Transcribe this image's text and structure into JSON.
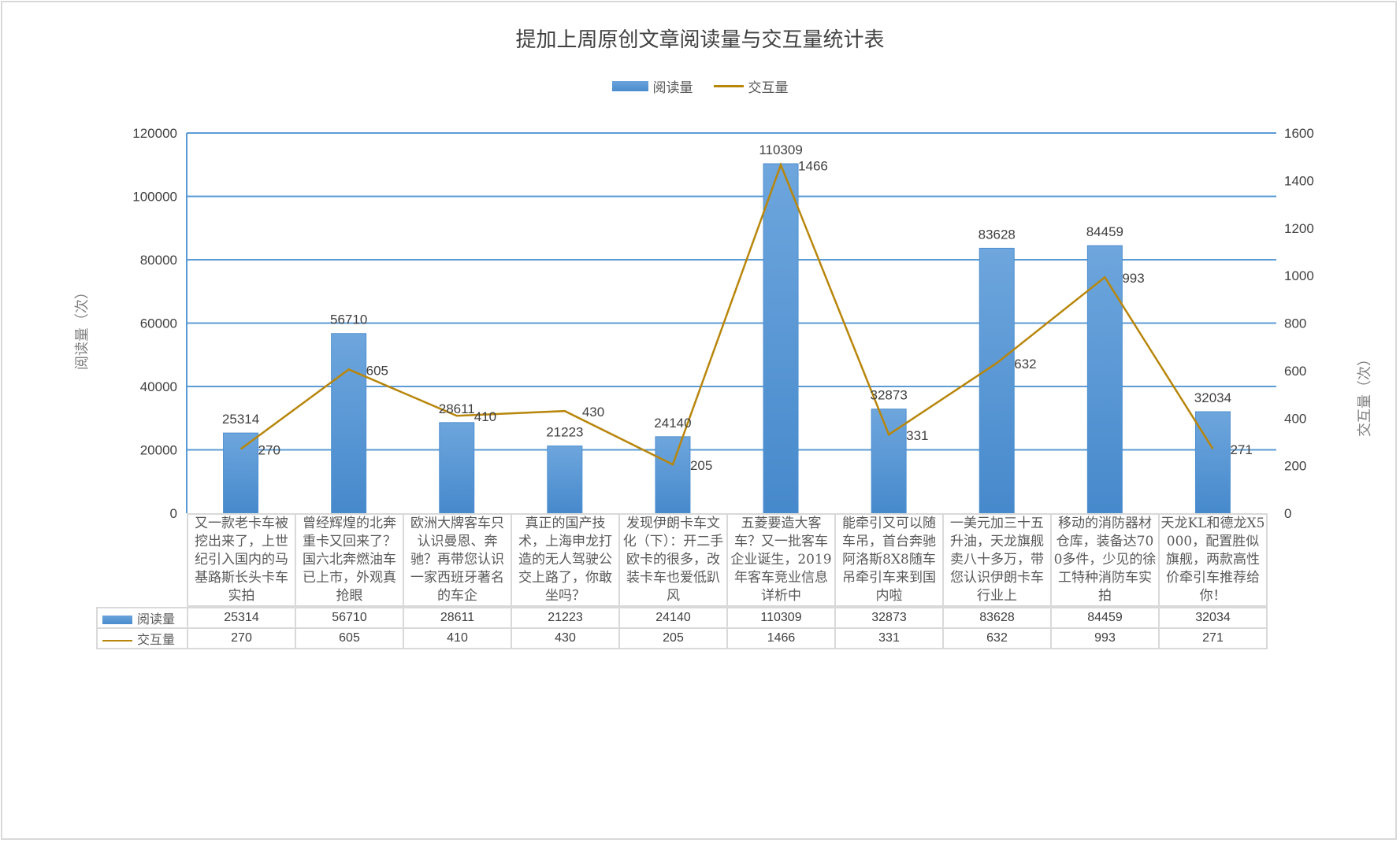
{
  "chart_data": {
    "type": "bar+line",
    "title": "提加上周原创文章阅读量与交互量统计表",
    "categories": [
      "又一款老卡车被挖出来了，上世纪引入国内的马基路斯长头卡车实拍",
      "曾经辉煌的北奔重卡又回来了？国六北奔燃油车已上市，外观真抢眼",
      "欧洲大牌客车只认识曼恩、奔驰？再带您认识一家西班牙著名的车企",
      "真正的国产技术，上海申龙打造的无人驾驶公交上路了，你敢坐吗？",
      "发现伊朗卡车文化（下）：开二手欧卡的很多，改装卡车也爱低趴风",
      "五菱要造大客车？又一批客车企业诞生，2019年客车竞业信息详析中",
      "能牵引又可以随车吊，首台奔驰阿洛斯8X8随车吊牵引车来到国内啦",
      "一美元加三十五升油，天龙旗舰卖八十多万，带您认识伊朗卡车行业上",
      "移动的消防器材仓库，装备达700多件，少见的徐工特种消防车实拍",
      "天龙KL和德龙X5000，配置胜似旗舰，两款高性价牵引车推荐给你！"
    ],
    "series": [
      {
        "name": "阅读量",
        "type": "bar",
        "axis": "left",
        "color": "#5b9bd5",
        "values": [
          25314,
          56710,
          28611,
          21223,
          24140,
          110309,
          32873,
          83628,
          84459,
          32034
        ]
      },
      {
        "name": "交互量",
        "type": "line",
        "axis": "right",
        "color": "#b8860b",
        "values": [
          270,
          605,
          410,
          430,
          205,
          1466,
          331,
          632,
          993,
          271
        ]
      }
    ],
    "ylabel": "阅读量（次）",
    "y2label": "交互量（次）",
    "ylim": [
      0,
      120000
    ],
    "y2lim": [
      0,
      1600
    ],
    "yticks": [
      "0",
      "20000",
      "40000",
      "60000",
      "80000",
      "100000",
      "120000"
    ],
    "y2ticks": [
      "0",
      "200",
      "400",
      "600",
      "800",
      "1000",
      "1200",
      "1400",
      "1600"
    ],
    "grid": true,
    "legend_position": "top",
    "data_table": true
  },
  "legend": {
    "bar_label": "阅读量",
    "line_label": "交互量"
  },
  "colors": {
    "bar": "#5b9bd5",
    "line": "#b8860b",
    "grid": "#5b9bd5",
    "table_border": "#d9d9d9"
  }
}
